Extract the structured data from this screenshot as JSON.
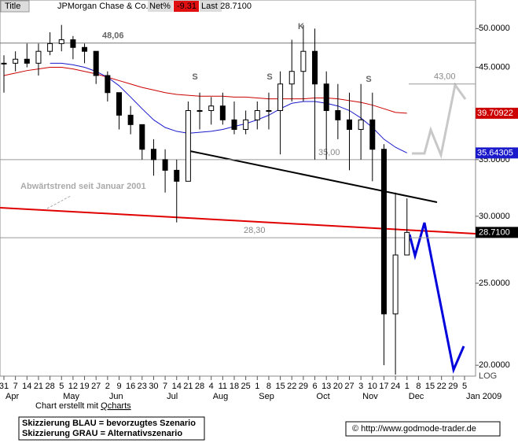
{
  "header": {
    "tab": "Title",
    "name": "JPMorgan Chase & Co.",
    "net_label": "Net%",
    "net": -9.31,
    "last_label": "Last",
    "last": {
      "value": 28.71,
      "label": "28.7100"
    }
  },
  "chart_data": {
    "type": "ohlc",
    "categories": [
      "31",
      "7",
      "14",
      "21",
      "28",
      "5",
      "12",
      "19",
      "27",
      "2",
      "9",
      "16",
      "23",
      "30",
      "7",
      "14",
      "21",
      "28",
      "4",
      "11",
      "18",
      "25",
      "1",
      "8",
      "15",
      "22",
      "29",
      "6",
      "13",
      "20",
      "27",
      "3",
      "10",
      "17",
      "24",
      "1",
      "8",
      "15",
      "22",
      "29",
      "5"
    ],
    "month_labels": [
      "Apr",
      null,
      null,
      null,
      null,
      "May",
      null,
      null,
      null,
      "Jun",
      null,
      null,
      null,
      null,
      "Jul",
      null,
      null,
      null,
      "Aug",
      null,
      null,
      null,
      "Sep",
      null,
      null,
      null,
      null,
      "Oct",
      null,
      null,
      null,
      "Nov",
      null,
      null,
      null,
      "Dec",
      null,
      null,
      null,
      null,
      "Jan 2009"
    ],
    "high": [
      46.5,
      47,
      48,
      48,
      49.5,
      50.5,
      49,
      48,
      47,
      44.5,
      42,
      40.5,
      38.5,
      37,
      36,
      35,
      41,
      42,
      41.5,
      42,
      41,
      40,
      41,
      42,
      44.5,
      48.5,
      50.5,
      50,
      44.5,
      43,
      42,
      43,
      42,
      36.5,
      32,
      31.5,
      null,
      null,
      null,
      null,
      null
    ],
    "low": [
      42,
      44.5,
      45,
      44,
      46.5,
      47,
      46,
      45.5,
      43,
      41,
      38,
      37.5,
      35,
      33.5,
      32,
      29.5,
      36,
      38,
      38.5,
      38.5,
      37.5,
      37.5,
      38,
      38,
      35.5,
      41,
      41,
      35,
      35,
      37,
      34,
      35,
      33,
      20,
      19.5,
      28.2,
      null,
      null,
      null,
      null,
      null
    ],
    "close": [
      45.5,
      46,
      45.5,
      47,
      48,
      48.5,
      47.5,
      47,
      44,
      42,
      39.5,
      38.5,
      36,
      35,
      34,
      33,
      40,
      40,
      40.5,
      39,
      38,
      39,
      40,
      40,
      43,
      44.5,
      47,
      43,
      40,
      39,
      38,
      39,
      36,
      23,
      27,
      28.71,
      null,
      null,
      null,
      null,
      null
    ],
    "series": [
      {
        "name": "MA red",
        "color": "#cc0000",
        "values": [
          44,
          44.3,
          44.6,
          44.8,
          45,
          45,
          44.8,
          44.5,
          44.2,
          43.8,
          43.4,
          43,
          42.6,
          42.3,
          42,
          41.8,
          41.7,
          41.6,
          41.6,
          41.6,
          41.5,
          41.5,
          41.4,
          41.3,
          41.3,
          41.3,
          41.3,
          41.4,
          41.4,
          41.3,
          41.1,
          40.9,
          40.6,
          40.2,
          39.8,
          39.70922,
          null,
          null,
          null,
          null,
          null
        ]
      },
      {
        "name": "MA blue",
        "color": "#1a1acc",
        "values": [
          null,
          null,
          null,
          null,
          45.5,
          45.5,
          45.3,
          45,
          44.5,
          43.8,
          42.8,
          41.5,
          40.2,
          39,
          38.2,
          37.8,
          37.6,
          37.7,
          37.8,
          38,
          38.3,
          38.6,
          39,
          39.5,
          40.2,
          40.8,
          41,
          41,
          40.8,
          40.5,
          40,
          39.2,
          38.2,
          37,
          36.2,
          35.64305,
          null,
          null,
          null,
          null,
          null
        ]
      }
    ],
    "log_scale": true,
    "ylim": [
      19.5,
      52
    ],
    "yticks": [
      {
        "value": 20,
        "label": "20.0000"
      },
      {
        "value": 25,
        "label": "25.0000"
      },
      {
        "value": 30,
        "label": "30.0000"
      },
      {
        "value": 35,
        "label": "35.0000"
      },
      {
        "value": 45,
        "label": "45.0000"
      },
      {
        "value": 50,
        "label": "50.0000"
      }
    ],
    "axis_note": "LOG",
    "levels": [
      {
        "value": 48.06,
        "label": "48,06"
      },
      {
        "value": 43,
        "label": "43,00"
      },
      {
        "value": 35,
        "label": "35,00"
      },
      {
        "value": 28.3,
        "label": "28,30"
      }
    ],
    "markers": [
      "S",
      "S",
      "S",
      "K"
    ],
    "trend_label": "Abwärtstrend seit Januar 2001"
  },
  "footer": {
    "credit_prefix": "Chart erstellt mit ",
    "credit_link": "Qcharts",
    "legend_blue": "Skizzierung BLAU = bevorzugtes Szenario",
    "legend_gray": "Skizzierung GRAU = Alternativszenario",
    "copyright": "© http://www.godmode-trader.de"
  }
}
